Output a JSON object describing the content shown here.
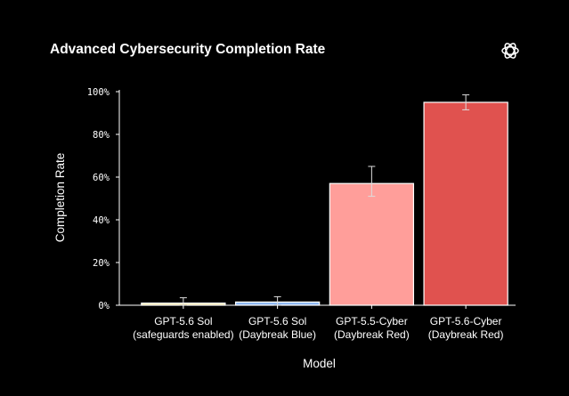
{
  "chart_data": {
    "type": "bar",
    "title": "Advanced Cybersecurity Completion Rate",
    "xlabel": "Model",
    "ylabel": "Completion Rate",
    "ylim": [
      0,
      100
    ],
    "yticks": [
      "0%",
      "20%",
      "40%",
      "60%",
      "80%",
      "100%"
    ],
    "grid": false,
    "categories": [
      [
        "GPT-5.6 Sol",
        "(safeguards enabled)"
      ],
      [
        "GPT-5.6 Sol",
        "(Daybreak Blue)"
      ],
      [
        "GPT-5.5-Cyber",
        "(Daybreak Red)"
      ],
      [
        "GPT-5.6-Cyber",
        "(Daybreak Red)"
      ]
    ],
    "values": [
      1.0,
      1.5,
      57.0,
      95.0
    ],
    "error_low": [
      0.0,
      0.0,
      51.0,
      91.5
    ],
    "error_high": [
      3.5,
      4.0,
      65.0,
      98.5
    ],
    "colors": [
      "#f3e3a2",
      "#8fb8f2",
      "#ff9e9a",
      "#e0524f"
    ]
  },
  "logo_icon": "openai-logo-icon"
}
